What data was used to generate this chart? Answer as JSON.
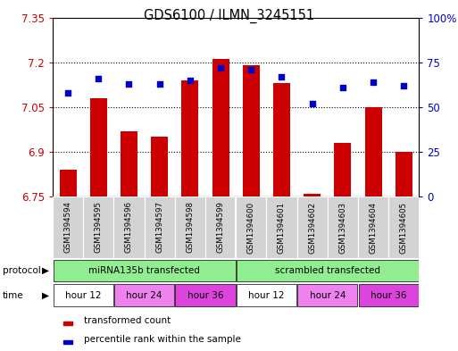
{
  "title": "GDS6100 / ILMN_3245151",
  "samples": [
    "GSM1394594",
    "GSM1394595",
    "GSM1394596",
    "GSM1394597",
    "GSM1394598",
    "GSM1394599",
    "GSM1394600",
    "GSM1394601",
    "GSM1394602",
    "GSM1394603",
    "GSM1394604",
    "GSM1394605"
  ],
  "transformed_counts": [
    6.84,
    7.08,
    6.97,
    6.95,
    7.14,
    7.21,
    7.19,
    7.13,
    6.76,
    6.93,
    7.05,
    6.9
  ],
  "percentile_ranks": [
    58,
    66,
    63,
    63,
    65,
    72,
    71,
    67,
    52,
    61,
    64,
    62
  ],
  "baseline": 6.75,
  "ylim_left": [
    6.75,
    7.35
  ],
  "ylim_right": [
    0,
    100
  ],
  "yticks_left": [
    6.75,
    6.9,
    7.05,
    7.2,
    7.35
  ],
  "yticks_right": [
    0,
    25,
    50,
    75,
    100
  ],
  "ytick_labels_right": [
    "0",
    "25",
    "50",
    "75",
    "100%"
  ],
  "bar_color": "#cc0000",
  "dot_color": "#0000cc",
  "time_colors": [
    "#ffffff",
    "#ee82ee",
    "#dd44dd",
    "#ffffff",
    "#ee82ee",
    "#dd44dd"
  ],
  "time_labels": [
    "hour 12",
    "hour 24",
    "hour 36",
    "hour 12",
    "hour 24",
    "hour 36"
  ],
  "protocol_color": "#90ee90",
  "protocol_labels": [
    "miRNA135b transfected",
    "scrambled transfected"
  ],
  "legend_items": [
    {
      "color": "#cc0000",
      "label": "transformed count"
    },
    {
      "color": "#0000cc",
      "label": "percentile rank within the sample"
    }
  ],
  "background_color": "#ffffff",
  "bar_width": 0.55
}
